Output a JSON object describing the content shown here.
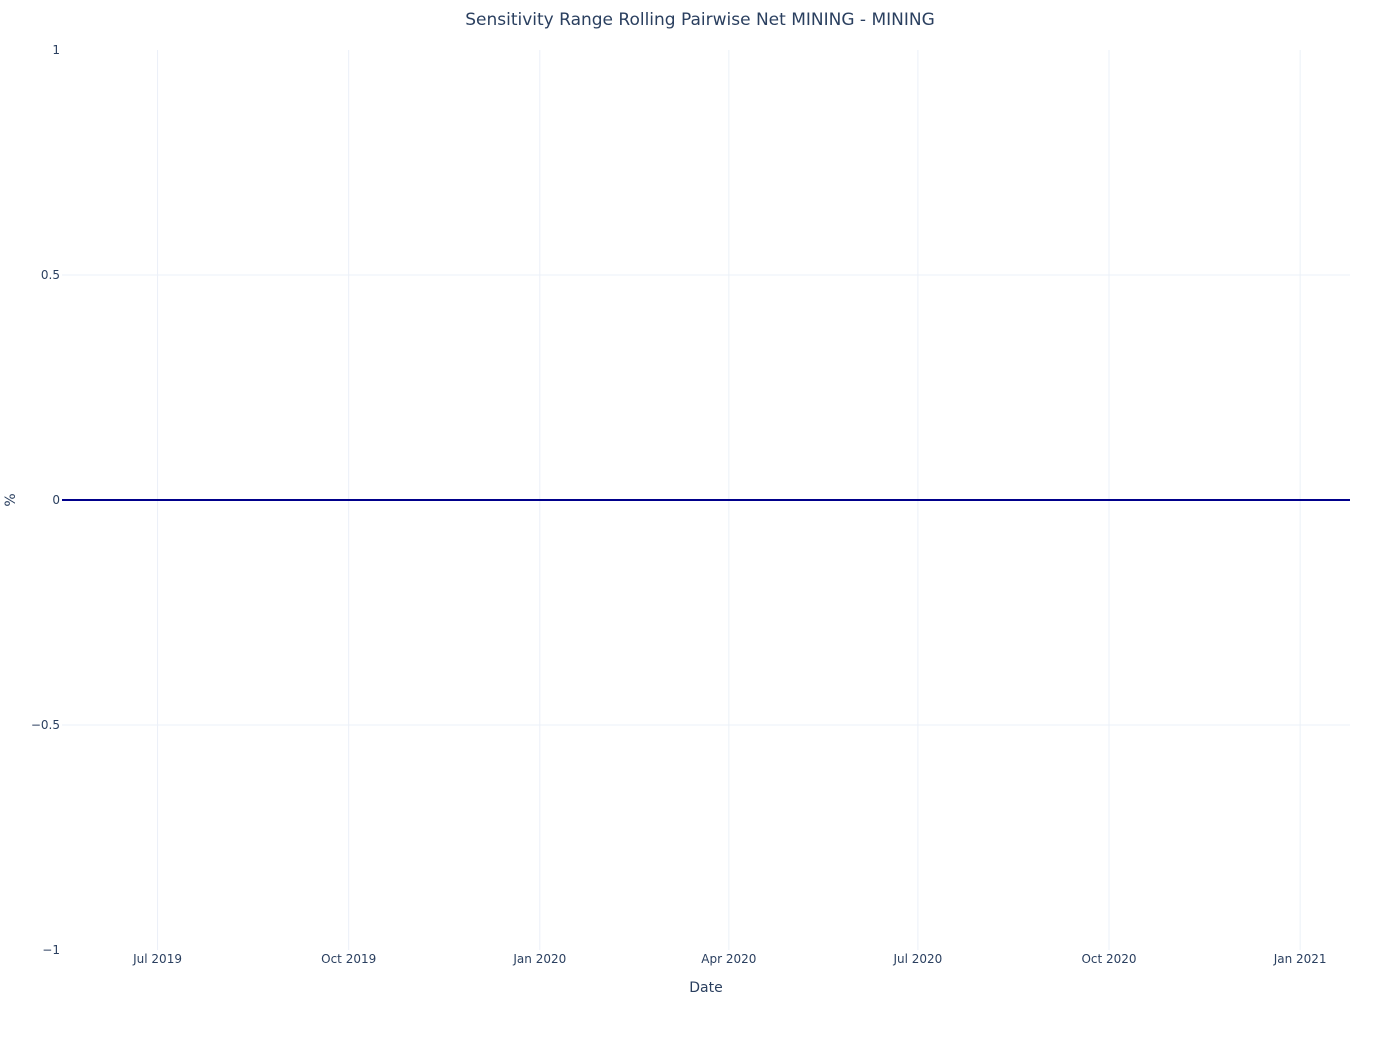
{
  "chart_data": {
    "type": "line",
    "title": "Sensitivity Range Rolling Pairwise Net MINING - MINING",
    "xlabel": "Date",
    "ylabel": "%",
    "ylim": [
      -1,
      1
    ],
    "xlim": [
      "2019-05-16",
      "2021-01-25"
    ],
    "grid": true,
    "legend": "none",
    "x_ticks": [
      {
        "date": "2019-07-01",
        "label": "Jul 2019"
      },
      {
        "date": "2019-10-01",
        "label": "Oct 2019"
      },
      {
        "date": "2020-01-01",
        "label": "Jan 2020"
      },
      {
        "date": "2020-04-01",
        "label": "Apr 2020"
      },
      {
        "date": "2020-07-01",
        "label": "Jul 2020"
      },
      {
        "date": "2020-10-01",
        "label": "Oct 2020"
      },
      {
        "date": "2021-01-01",
        "label": "Jan 2021"
      }
    ],
    "y_ticks": [
      {
        "value": 1,
        "label": "1"
      },
      {
        "value": 0.5,
        "label": "0.5"
      },
      {
        "value": 0,
        "label": "0"
      },
      {
        "value": -0.5,
        "label": "−0.5"
      },
      {
        "value": -1,
        "label": "−1"
      }
    ],
    "series": [
      {
        "color": "#00008b",
        "x": [
          "2019-05-16",
          "2021-01-25"
        ],
        "y": [
          0,
          0
        ]
      }
    ]
  }
}
